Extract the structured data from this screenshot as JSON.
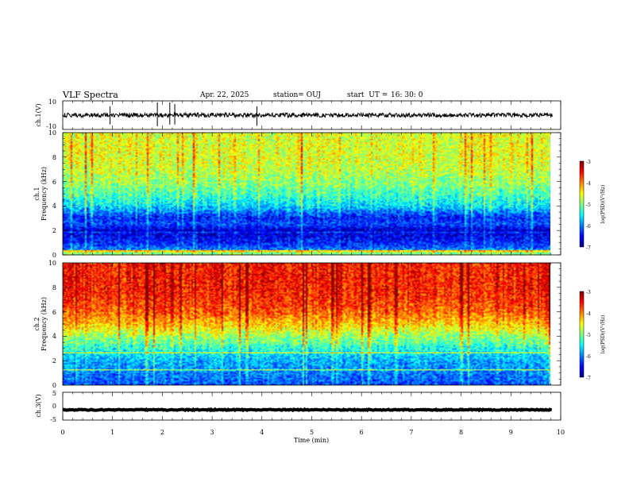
{
  "header": {
    "title": "VLF Spectra",
    "date": "Apr. 22, 2025",
    "station": "station= OUJ",
    "start_label": "start  UT =",
    "start_time": "16: 30: 0"
  },
  "chart_data": [
    {
      "type": "line",
      "name": "ch1-waveform",
      "ylabel": "ch.1(V)",
      "ylim": [
        -10,
        10
      ],
      "yticks": [
        "10",
        "-10"
      ],
      "xlim": [
        0,
        10
      ],
      "baseline": 0,
      "noise_amplitude": 1.5,
      "spikes_min": [
        0.95,
        1.9,
        2.15,
        2.25,
        3.9
      ]
    },
    {
      "type": "heatmap",
      "name": "ch1-spectrogram",
      "ylabel_lines": [
        "ch.1",
        "Frequency (kHz)"
      ],
      "ylim": [
        0,
        10
      ],
      "yticks": [
        "0",
        "2",
        "4",
        "6",
        "8",
        "10"
      ],
      "xlim": [
        0,
        9.83
      ],
      "colorbar": {
        "label": "log(PSD)(V²/Hz)",
        "range": [
          -7,
          -3
        ],
        "ticks": [
          "-3",
          "-4",
          "-5",
          "-6",
          "-7"
        ]
      },
      "freq_profile_khz": [
        0,
        1,
        2,
        2.5,
        3,
        3.5,
        4,
        5,
        6,
        7,
        8,
        10
      ],
      "log_psd_profile": [
        -5.8,
        -6.4,
        -6.7,
        -6.2,
        -6.4,
        -6.0,
        -5.6,
        -5.2,
        -4.9,
        -4.7,
        -4.6,
        -4.6
      ]
    },
    {
      "type": "heatmap",
      "name": "ch2-spectrogram",
      "ylabel_lines": [
        "ch.2",
        "Frequency (kHz)"
      ],
      "ylim": [
        0,
        10
      ],
      "yticks": [
        "0",
        "2",
        "4",
        "6",
        "8",
        "10"
      ],
      "xlim": [
        0,
        9.83
      ],
      "colorbar": {
        "label": "log(PSD)(V²/Hz)",
        "range": [
          -7,
          -3
        ],
        "ticks": [
          "-3",
          "-4",
          "-5",
          "-6",
          "-7"
        ]
      },
      "freq_profile_khz": [
        0,
        1,
        2,
        3,
        4,
        5,
        6,
        7,
        8,
        10
      ],
      "log_psd_profile": [
        -6.2,
        -6.0,
        -5.8,
        -5.4,
        -4.9,
        -4.3,
        -3.9,
        -3.7,
        -3.6,
        -3.6
      ]
    },
    {
      "type": "line",
      "name": "ch3-waveform",
      "ylabel": "ch.3(V)",
      "ylim": [
        -5,
        5
      ],
      "yticks": [
        "5",
        "0",
        "-5"
      ],
      "xlim": [
        0,
        9.83
      ],
      "baseline": -1.3,
      "noise_amplitude": 0.35
    }
  ],
  "xaxis": {
    "xlabel": "Time (min)",
    "xlim": [
      0,
      10
    ],
    "ticks": [
      "0",
      "1",
      "2",
      "3",
      "4",
      "5",
      "6",
      "7",
      "8",
      "9",
      "10"
    ]
  },
  "colors": {
    "jet": [
      "#00007f",
      "#0000ff",
      "#007fff",
      "#00ffff",
      "#7fff7f",
      "#ffff00",
      "#ff7f00",
      "#ff0000",
      "#7f0000"
    ]
  }
}
